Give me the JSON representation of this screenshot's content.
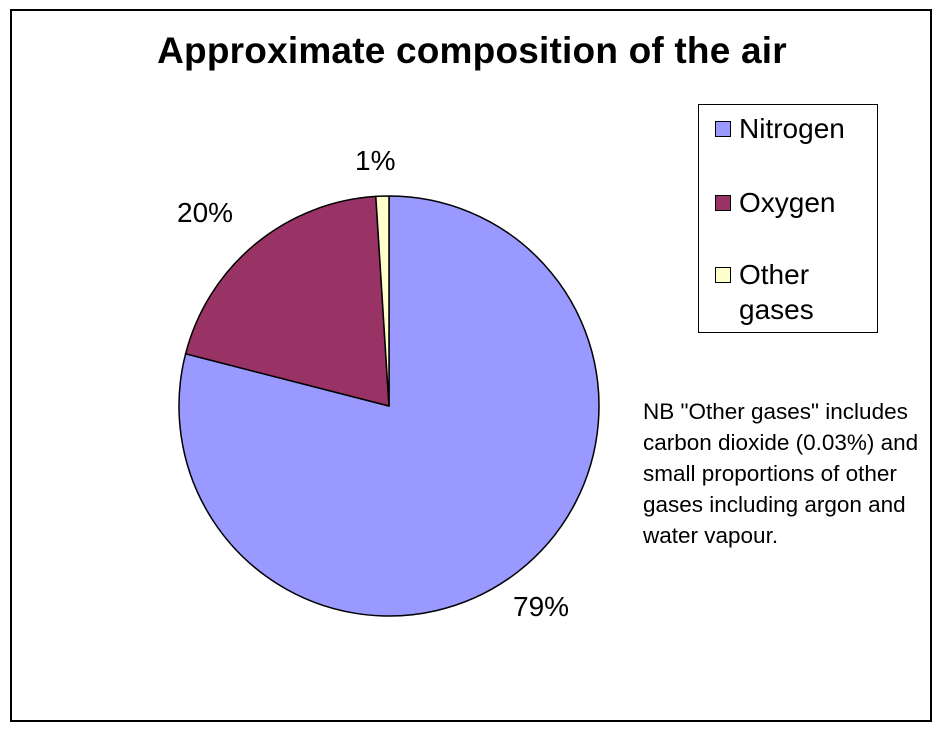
{
  "chart_data": {
    "type": "pie",
    "title": "Approximate composition of the air",
    "categories": [
      "Nitrogen",
      "Oxygen",
      "Other gases"
    ],
    "values": [
      79,
      20,
      1
    ],
    "data_labels": [
      "79%",
      "20%",
      "1%"
    ],
    "colors": [
      "#9999ff",
      "#993366",
      "#ffffcc"
    ],
    "legend": {
      "placement": "right",
      "entries": [
        "Nitrogen",
        "Oxygen",
        "Other gases"
      ]
    },
    "annotation": "NB \"Other gases\" includes carbon dioxide (0.03%) and small proportions of other gases including argon and water vapour."
  }
}
